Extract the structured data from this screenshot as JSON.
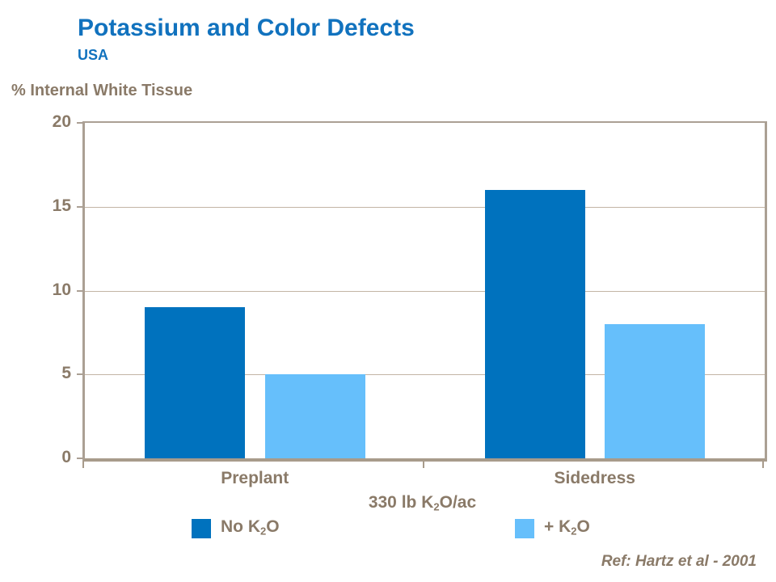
{
  "header": {
    "title": "Potassium and Color Defects",
    "subtitle": "USA"
  },
  "y_axis_title": "% Internal White Tissue",
  "x_axis_label": {
    "pre": "330 lb K",
    "sub": "2",
    "post": "O/ac"
  },
  "legend": [
    {
      "pre": "No K",
      "sub": "2",
      "post": "O"
    },
    {
      "pre": "+ K",
      "sub": "2",
      "post": "O"
    }
  ],
  "footer": {
    "reference": "Ref: Hartz et al - 2001"
  },
  "colors": {
    "title_blue": "#1172BE",
    "text_brown": "#8A7A68",
    "dark_bar": "#0072BE",
    "light_bar": "#66BFFB",
    "gridline": "#C3B5A5",
    "axis_frame": "#ABA094"
  },
  "chart_data": {
    "type": "bar",
    "title": "Potassium and Color Defects",
    "subtitle": "USA",
    "categories": [
      "Preplant",
      "Sidedress"
    ],
    "series": [
      {
        "name": "No K2O",
        "color": "#0072BE",
        "values": [
          9,
          16
        ]
      },
      {
        "name": "+ K2O",
        "color": "#66BFFB",
        "values": [
          5,
          8
        ]
      }
    ],
    "xlabel": "330 lb K2O/ac",
    "ylabel": "% Internal White Tissue",
    "ylim": [
      0,
      20
    ],
    "yticks": [
      0,
      5,
      10,
      15,
      20
    ],
    "grid": true,
    "legend_position": "bottom",
    "annotation": "Ref: Hartz et al - 2001"
  }
}
